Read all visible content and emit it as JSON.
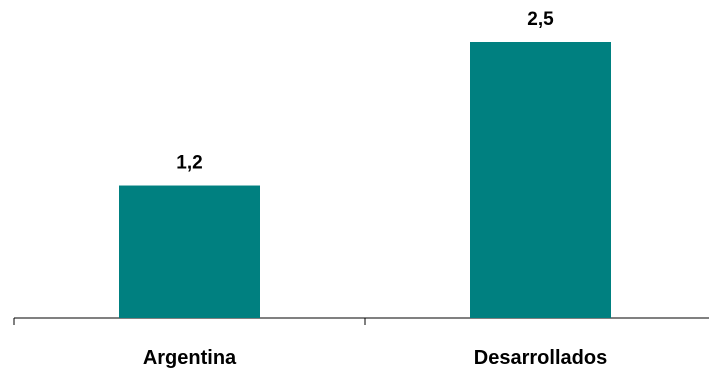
{
  "chart_data": {
    "type": "bar",
    "categories": [
      "Argentina",
      "Desarrollados"
    ],
    "values": [
      1.2,
      2.5
    ],
    "value_labels": [
      "1,2",
      "2,5"
    ],
    "title": "",
    "xlabel": "",
    "ylabel": "",
    "ylim": [
      0,
      2.5
    ],
    "grid": false,
    "legend": "none",
    "bar_color": "#008080"
  }
}
